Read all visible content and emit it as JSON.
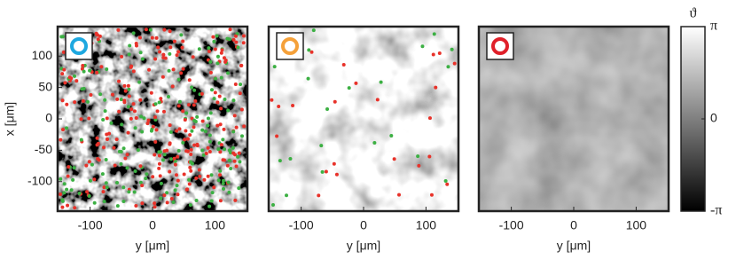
{
  "chart_data": [
    {
      "type": "image",
      "marker_color": "#1ea8e0",
      "xlabel": "y [μm]",
      "ylabel": "x [μm]",
      "xlim": [
        -152,
        152
      ],
      "ylim": [
        -147,
        147
      ],
      "xticks": [
        -100,
        0,
        100
      ],
      "yticks": [
        -100,
        -50,
        0,
        50,
        100
      ],
      "texture": {
        "frequency": 0.07,
        "contrast": 3.2,
        "offset": -1.05,
        "dots": 420
      }
    },
    {
      "type": "image",
      "marker_color": "#f5a13a",
      "xlabel": "y [μm]",
      "xlim": [
        -152,
        152
      ],
      "ylim": [
        -147,
        147
      ],
      "xticks": [
        -100,
        0,
        100
      ],
      "texture": {
        "frequency": 0.03,
        "contrast": 1.6,
        "offset": 0.12,
        "dots": 45
      }
    },
    {
      "type": "image",
      "marker_color": "#e0202a",
      "xlabel": "y [μm]",
      "xlim": [
        -152,
        152
      ],
      "ylim": [
        -147,
        147
      ],
      "xticks": [
        -100,
        0,
        100
      ],
      "texture": {
        "frequency": 0.02,
        "contrast": 0.5,
        "offset": 0.2,
        "dots": 0
      }
    }
  ],
  "colorbar": {
    "label": "ϑ",
    "lim": [
      -3.14159,
      3.14159
    ],
    "ticks": [
      {
        "value": -3.14159,
        "label": "-π"
      },
      0,
      {
        "value": 3.14159,
        "label": "π"
      }
    ]
  }
}
